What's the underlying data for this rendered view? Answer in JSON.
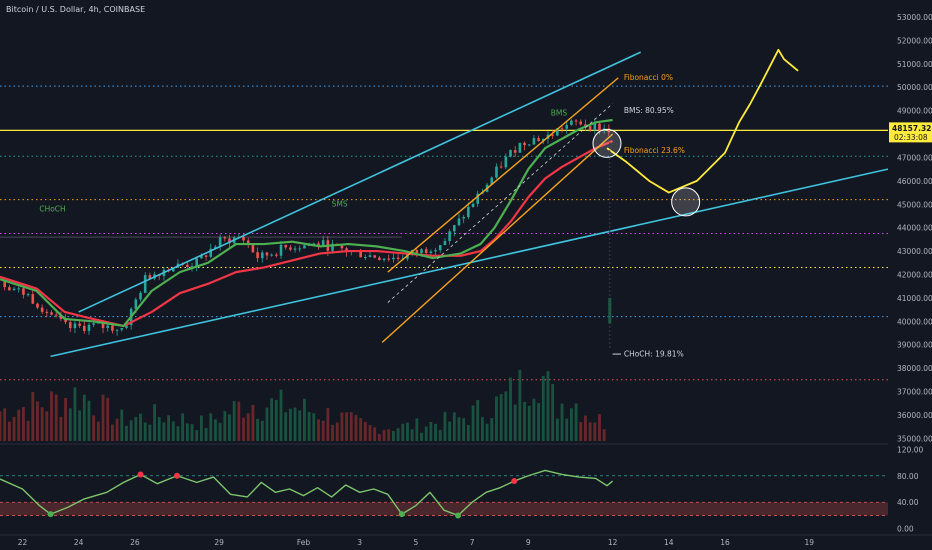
{
  "header": {
    "title": "Bitcoin / U.S. Dollar, 4h, COINBASE"
  },
  "price_tag": {
    "price": "48157.32",
    "countdown": "02:33:08"
  },
  "colors": {
    "background": "#131722",
    "up": "#26a69a",
    "down": "#ef5350",
    "ema_fast": "#4caf50",
    "ema_slow": "#f23645",
    "channel_cyan": "#3fc2dd",
    "channel_orange": "#f7a21b",
    "yellow": "#ffeb3b",
    "rsi": "#7cc66b"
  },
  "chart_data": [
    {
      "type": "line",
      "title": "",
      "y_axis": {
        "ticks": [
          "53000.00",
          "52000.00",
          "51000.00",
          "50000.00",
          "49000.00",
          "48000.00",
          "47000.00",
          "46000.00",
          "45000.00",
          "44000.00",
          "43000.00",
          "42000.00",
          "41000.00",
          "40000.00",
          "39000.00",
          "38000.00",
          "37000.00",
          "36000.00",
          "35000.00"
        ],
        "range": [
          34800,
          53300
        ]
      },
      "x_axis": {
        "ticks": [
          "22",
          "24",
          "26",
          "29",
          "Feb",
          "3",
          "5",
          "7",
          "9",
          "12",
          "14",
          "16",
          "19"
        ],
        "tick_positions_day_index": [
          0,
          2,
          4,
          7,
          10,
          12,
          14,
          16,
          18,
          21,
          23,
          25,
          28
        ],
        "range_day_index": [
          -0.8,
          30.8
        ]
      },
      "price_path": {
        "x": [
          -0.8,
          0.2,
          1.0,
          1.6,
          2.5,
          3.6,
          4.4,
          5.2,
          6.2,
          7.0,
          7.8,
          8.4,
          9.5,
          10.6,
          11.6,
          12.4,
          13.3,
          14.2,
          15.0,
          15.8,
          16.5,
          17.1,
          17.6,
          18.1,
          18.6,
          19.2,
          19.8,
          20.4,
          20.9
        ],
        "close": [
          41700,
          41100,
          40300,
          39700,
          39800,
          39700,
          41900,
          42300,
          42500,
          43400,
          43600,
          42700,
          43200,
          43300,
          43000,
          42800,
          42700,
          43000,
          43400,
          44700,
          45800,
          46800,
          47500,
          47800,
          47800,
          48300,
          48500,
          48300,
          48157
        ]
      },
      "ema_fast": {
        "name": "",
        "x": [
          -0.8,
          0.5,
          1.5,
          2.5,
          3.6,
          4.6,
          5.6,
          6.6,
          7.6,
          8.6,
          9.6,
          10.6,
          11.6,
          12.6,
          13.6,
          14.6,
          15.6,
          16.3,
          16.8,
          17.4,
          18.0,
          18.6,
          19.2,
          19.8,
          20.4,
          21.0
        ],
        "y": [
          41800,
          41300,
          40100,
          40000,
          39800,
          41300,
          42100,
          42500,
          43300,
          43300,
          43400,
          43200,
          43300,
          43200,
          43000,
          42700,
          42900,
          43300,
          44000,
          45200,
          46500,
          47400,
          47800,
          48200,
          48500,
          48600
        ]
      },
      "ema_slow": {
        "name": "",
        "x": [
          -0.8,
          0.5,
          1.5,
          2.5,
          3.6,
          4.6,
          5.6,
          6.6,
          7.6,
          8.6,
          9.6,
          10.6,
          11.6,
          12.6,
          13.6,
          14.6,
          15.6,
          16.3,
          16.8,
          17.4,
          18.0,
          18.6,
          19.2,
          19.8,
          20.4,
          21.0
        ],
        "y": [
          41900,
          41400,
          40400,
          40100,
          39800,
          40400,
          41200,
          41600,
          42100,
          42300,
          42600,
          42900,
          43000,
          43000,
          42900,
          42800,
          42800,
          43000,
          43500,
          44300,
          45300,
          46100,
          46600,
          47000,
          47400,
          47700
        ]
      },
      "volume": {
        "x": [
          -0.8,
          1.0,
          2.0,
          3.5,
          5.0,
          6.5,
          8.0,
          9.6,
          11.0,
          12.5,
          14.0,
          15.5,
          17.0,
          17.8,
          18.3,
          19.0,
          19.5,
          20.2,
          20.8
        ],
        "relative": [
          0.35,
          0.45,
          0.55,
          0.25,
          0.3,
          0.2,
          0.45,
          0.4,
          0.3,
          0.15,
          0.18,
          0.25,
          0.45,
          0.65,
          0.9,
          0.4,
          0.5,
          0.3,
          0.2
        ]
      },
      "horizontal_levels": {
        "yellow_solid": 48157,
        "blue_dotted": [
          50050,
          40200
        ],
        "green_dotted": [
          47050
        ],
        "orange_dotted": [
          45200
        ],
        "yellow_dotted": [
          42300
        ],
        "purple_dotted": [
          43750
        ],
        "red_dotted": [
          37500
        ]
      },
      "projection": {
        "x": [
          20.8,
          21.5,
          22.3,
          23.0,
          24.0,
          25.0,
          25.5,
          25.9,
          26.3,
          26.6,
          26.9,
          27.1,
          27.6
        ],
        "y": [
          47400,
          46800,
          46000,
          45500,
          46000,
          47200,
          48500,
          49300,
          50200,
          50900,
          51600,
          51200,
          50700
        ]
      },
      "circles": [
        {
          "x": 20.8,
          "y": 47600
        },
        {
          "x": 23.6,
          "y": 45100
        }
      ],
      "annotations": {
        "choch_left": "CHoCH",
        "sms": "SMS",
        "bms_top": "BMS",
        "fib_0": "Fibonacci 0%",
        "fib_236": "Fibonacci 23.6%",
        "bms_pct": "BMS: 80.95%",
        "choch_pct": "CHoCH: 19.81%"
      }
    },
    {
      "type": "line",
      "title": "",
      "y_axis": {
        "ticks": [
          "120.00",
          "80.00",
          "40.00",
          "0.00"
        ],
        "range": [
          -5,
          125
        ]
      },
      "levels": [
        80,
        40,
        20
      ],
      "rsi": {
        "x": [
          -0.8,
          0.0,
          0.6,
          1.0,
          1.6,
          2.2,
          3.0,
          3.6,
          4.2,
          4.8,
          5.5,
          6.2,
          6.8,
          7.4,
          8.0,
          8.5,
          9.0,
          9.5,
          10.0,
          10.5,
          11.0,
          11.5,
          12.0,
          12.5,
          13.0,
          13.5,
          14.0,
          14.5,
          15.0,
          15.5,
          16.0,
          16.5,
          17.0,
          17.5,
          18.0,
          18.6,
          19.2,
          19.8,
          20.4,
          20.8,
          21.0
        ],
        "y": [
          75,
          60,
          35,
          22,
          32,
          45,
          55,
          70,
          82,
          68,
          80,
          70,
          78,
          52,
          48,
          70,
          55,
          60,
          50,
          62,
          48,
          66,
          55,
          60,
          52,
          22,
          35,
          55,
          28,
          20,
          40,
          55,
          62,
          72,
          80,
          88,
          82,
          78,
          76,
          65,
          72
        ]
      },
      "overbought_markers_x": [
        4.2,
        5.5,
        17.5
      ],
      "oversold_markers_x": [
        1.0,
        13.5,
        15.5
      ]
    }
  ]
}
